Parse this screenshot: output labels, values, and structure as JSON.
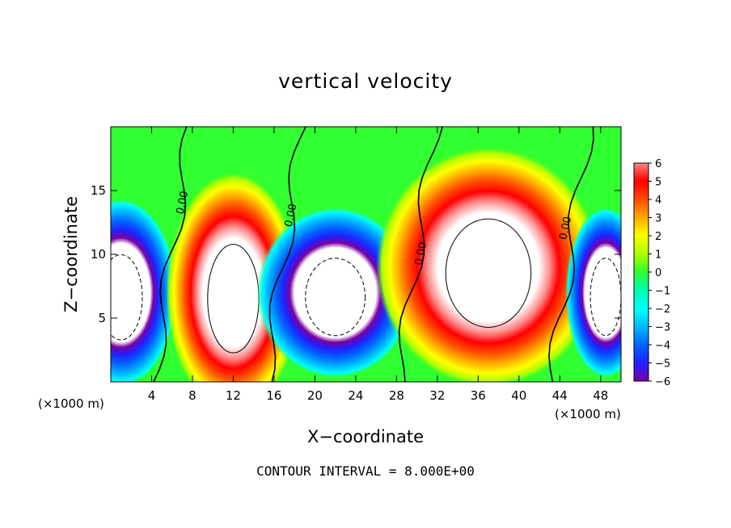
{
  "chart_data": {
    "type": "heatmap",
    "title": "vertical velocity",
    "xlabel": "X−coordinate",
    "ylabel": "Z−coordinate",
    "x_unit": "(×1000 m)",
    "z_unit": "(×1000 m)",
    "xlim": [
      0,
      50
    ],
    "ylim": [
      0,
      20
    ],
    "x_ticks": [
      4,
      8,
      12,
      16,
      20,
      24,
      28,
      32,
      36,
      40,
      44,
      48
    ],
    "y_ticks": [
      5,
      10,
      15
    ],
    "colorbar": {
      "ticks": [
        "6",
        "5",
        "4",
        "3",
        "2",
        "1",
        "0",
        "−1",
        "−2",
        "−3",
        "−4",
        "−5",
        "−6"
      ],
      "range": [
        -6,
        6
      ]
    },
    "contour_interval": "CONTOUR INTERVAL = 8.000E+00",
    "zero_contour_label": "0.00",
    "cells": [
      {
        "x": 1,
        "z": 7,
        "rx": 2.5,
        "rz": 5.5,
        "sign": -1
      },
      {
        "x": 12,
        "z": 7,
        "rx": 3,
        "rz": 7,
        "sign": 1
      },
      {
        "x": 22,
        "z": 7,
        "rx": 3.5,
        "rz": 5,
        "sign": -1
      },
      {
        "x": 37,
        "z": 9,
        "rx": 5,
        "rz": 7,
        "sign": 1
      },
      {
        "x": 48.5,
        "z": 7,
        "rx": 1.8,
        "rz": 5,
        "sign": -1
      }
    ]
  },
  "colors": {
    "palette": [
      "#7a00a0",
      "#2020ff",
      "#0068ff",
      "#00b8ff",
      "#00ffff",
      "#00ffaa",
      "#30ff30",
      "#aaff00",
      "#ffff00",
      "#ffaa00",
      "#ff5000",
      "#ff0000",
      "#ff8888"
    ]
  }
}
